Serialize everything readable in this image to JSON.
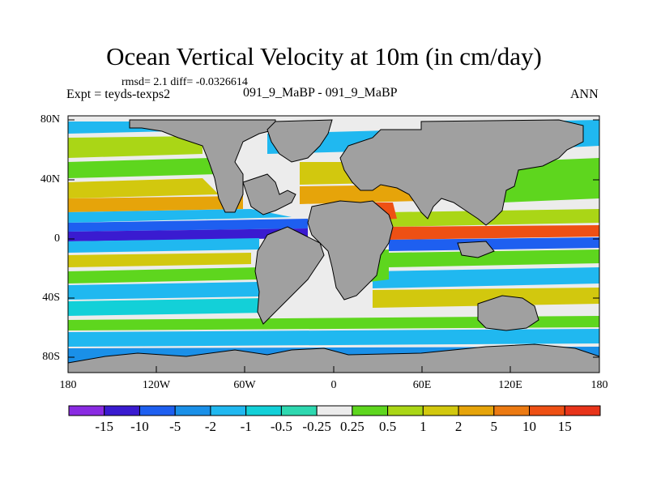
{
  "title": "Ocean Vertical Velocity at 10m (in cm/day)",
  "stats_line": "rmsd= 2.1 diff= -0.0326614",
  "expt_line": "Expt = teyds-texps2",
  "case_line": "091_9_MaBP - 091_9_MaBP",
  "season": "ANN",
  "lat_ticks": [
    "80N",
    "40N",
    "0",
    "40S",
    "80S"
  ],
  "lon_ticks": [
    "180",
    "120W",
    "60W",
    "0",
    "60E",
    "120E",
    "180"
  ],
  "colorbar": {
    "labels": [
      "-15",
      "-10",
      "-5",
      "-2",
      "-1",
      "-0.5",
      "-0.25",
      "0.25",
      "0.5",
      "1",
      "2",
      "5",
      "10",
      "15"
    ],
    "colors": [
      "#8a2be2",
      "#3a1bd0",
      "#1e5ff0",
      "#1a90e8",
      "#20b8f0",
      "#13d0d8",
      "#2ed8b0",
      "#ececec",
      "#5ed61e",
      "#aad616",
      "#d2c80e",
      "#e6a40a",
      "#ec7a12",
      "#ee5014",
      "#e8341a"
    ]
  },
  "colors": {
    "land": "#a0a0a0",
    "ocean_default": "#ececec"
  }
}
